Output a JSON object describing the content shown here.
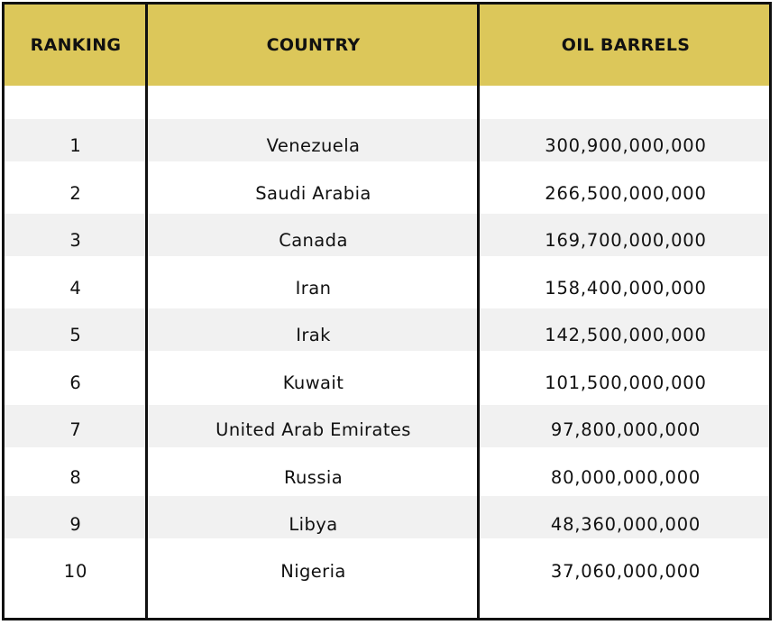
{
  "table": {
    "headers": {
      "ranking": "RANKING",
      "country": "COUNTRY",
      "oil_barrels": "OIL BARRELS"
    },
    "rows": [
      {
        "rank": "1",
        "country": "Venezuela",
        "barrels": "300,900,000,000"
      },
      {
        "rank": "2",
        "country": "Saudi Arabia",
        "barrels": "266,500,000,000"
      },
      {
        "rank": "3",
        "country": "Canada",
        "barrels": "169,700,000,000"
      },
      {
        "rank": "4",
        "country": "Iran",
        "barrels": "158,400,000,000"
      },
      {
        "rank": "5",
        "country": "Irak",
        "barrels": "142,500,000,000"
      },
      {
        "rank": "6",
        "country": "Kuwait",
        "barrels": "101,500,000,000"
      },
      {
        "rank": "7",
        "country": "United Arab Emirates",
        "barrels": "97,800,000,000"
      },
      {
        "rank": "8",
        "country": "Russia",
        "barrels": "80,000,000,000"
      },
      {
        "rank": "9",
        "country": "Libya",
        "barrels": "48,360,000,000"
      },
      {
        "rank": "10",
        "country": "Nigeria",
        "barrels": "37,060,000,000"
      }
    ],
    "colors": {
      "header_bg": "#dcc75a",
      "band_bg": "#f1f1f1",
      "border": "#111111"
    }
  }
}
